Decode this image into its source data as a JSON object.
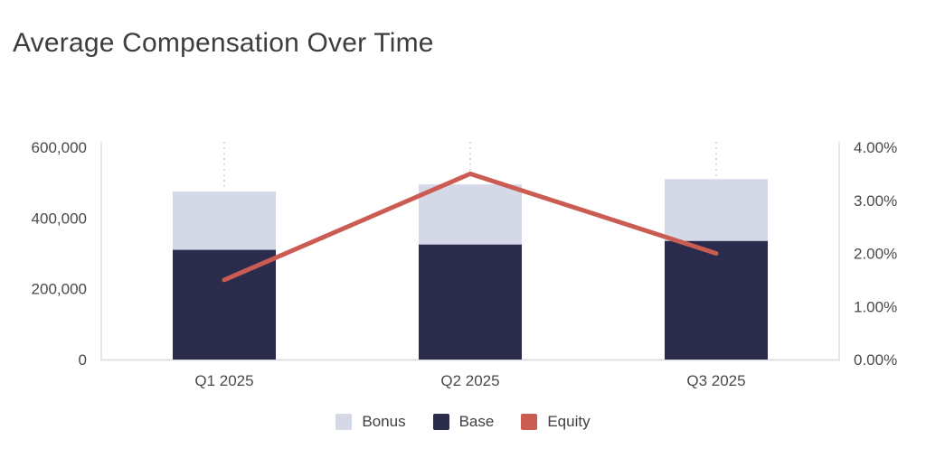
{
  "title": "Average Compensation Over Time",
  "chart_data": {
    "type": "combo-stacked-bar-line",
    "title": "Average Compensation Over Time",
    "categories": [
      "Q1 2025",
      "Q2 2025",
      "Q3 2025"
    ],
    "series": [
      {
        "name": "Bonus",
        "type": "bar",
        "stack": "compensation",
        "position": "top",
        "axis": "left",
        "color": "#d5d9e7",
        "values": [
          165000,
          170000,
          175000
        ]
      },
      {
        "name": "Base",
        "type": "bar",
        "stack": "compensation",
        "position": "bottom",
        "axis": "left",
        "color": "#2b2b4b",
        "values": [
          310000,
          325000,
          335000
        ]
      },
      {
        "name": "Equity",
        "type": "line",
        "axis": "right",
        "color": "#cb5c53",
        "values": [
          1.5,
          3.5,
          2.0
        ],
        "unit": "%"
      }
    ],
    "stack_totals": [
      475000,
      495000,
      510000
    ],
    "left_axis": {
      "min": 0,
      "max": 600000,
      "ticks": [
        {
          "label": "0",
          "value": 0
        },
        {
          "label": "200,000",
          "value": 200000
        },
        {
          "label": "400,000",
          "value": 400000
        },
        {
          "label": "600,000",
          "value": 600000
        }
      ]
    },
    "right_axis": {
      "min": 0,
      "max": 4,
      "unit": "%",
      "ticks": [
        {
          "label": "0.00%",
          "value": 0
        },
        {
          "label": "1.00%",
          "value": 1
        },
        {
          "label": "2.00%",
          "value": 2
        },
        {
          "label": "3.00%",
          "value": 3
        },
        {
          "label": "4.00%",
          "value": 4
        }
      ]
    },
    "legend": [
      {
        "label": "Bonus",
        "color": "#d5d9e7"
      },
      {
        "label": "Base",
        "color": "#2b2b4b"
      },
      {
        "label": "Equity",
        "color": "#cb5c53"
      }
    ],
    "legend_position": "bottom-center",
    "grid": "vertical-dotted-guides-above-marks",
    "colors": {
      "axis_line": "#dcdde3",
      "guide_dots": "#d0d1d7",
      "tick_text": "#4a4a4a",
      "title_text": "#3d3d3d",
      "background": "#ffffff"
    }
  }
}
